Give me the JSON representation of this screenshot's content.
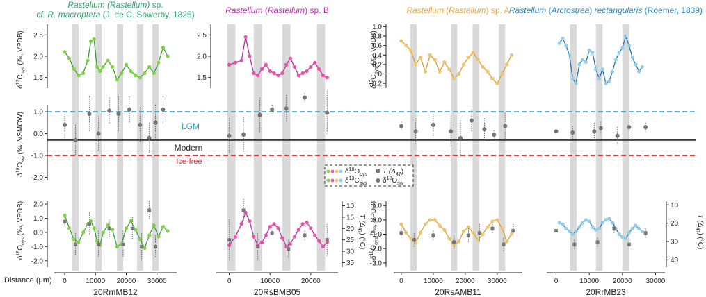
{
  "figure": {
    "ylabels": {
      "d13c": [
        "δ",
        "13",
        "C",
        "oys",
        " (‰, VPDB)"
      ],
      "d18ow": [
        "δ",
        "18",
        "O",
        "sw",
        " (‰, VSMOW)"
      ],
      "d18oc": [
        "δ",
        "18",
        "O",
        "oys",
        " (‰, VPDB)"
      ],
      "temp": [
        "T (Δ",
        "47",
        ") (°C)"
      ]
    },
    "xlabel": "Distance (μm)",
    "reference_lines": {
      "lgm": {
        "label": "LGM",
        "value": 1.0,
        "color": "#2aa6d4"
      },
      "modern": {
        "label": "Modern",
        "value": -0.3,
        "color": "#222222"
      },
      "icefree": {
        "label": "Ice-free",
        "value": -1.0,
        "color": "#dd2222"
      }
    },
    "legend": {
      "d18o_oys": [
        "δ",
        "18",
        "O",
        "oys"
      ],
      "d13c_oys": [
        "δ",
        "13",
        "C",
        "oys"
      ],
      "t_d47": [
        "T (Δ",
        "47",
        ")"
      ],
      "d18o_sw": [
        "δ",
        "18",
        "O",
        "sw"
      ]
    },
    "colors": {
      "A": "#7ed43e",
      "B": "#ec4fa8",
      "C": "#f2c46a",
      "D": "#8ecfee",
      "A_line": "#3a9e3a",
      "B_line": "#b22faa",
      "C_line": "#d99a2e",
      "D_line": "#2a6fa8",
      "shade": "#d9d9d9",
      "marker": "#777777"
    }
  },
  "chart_data": [
    {
      "type": "scatter",
      "sample": "20RmMB12",
      "title_parts": [
        {
          "text": "Rastellum (Rastellum) ",
          "italic": true
        },
        {
          "text": "sp.",
          "italic": false
        }
      ],
      "title2_parts": [
        {
          "text": "cf. R. macroptera",
          "italic": true
        },
        {
          "text": " (J. de C. Sowerby, 1825)",
          "italic": false
        }
      ],
      "title_color": "#2aa66a",
      "xticks": [
        0,
        10000,
        20000,
        30000
      ],
      "xlim": [
        -2500,
        35500
      ],
      "d13c": {
        "ylim": [
          1.25,
          2.75
        ],
        "ticks": [
          1.5,
          2.0,
          2.5
        ],
        "tick_labels": [
          "1.5",
          "2.0",
          "2.5"
        ],
        "x": [
          0,
          1500,
          3000,
          4500,
          6000,
          7500,
          8500,
          9500,
          10500,
          11500,
          12500,
          14000,
          15500,
          17000,
          18500,
          20000,
          21500,
          23000,
          24500,
          26000,
          27500,
          29000,
          30500,
          32000,
          33500
        ],
        "y": [
          2.1,
          1.95,
          1.7,
          1.55,
          1.6,
          1.9,
          2.35,
          2.4,
          1.75,
          1.65,
          1.75,
          1.9,
          1.75,
          1.45,
          1.6,
          1.8,
          1.65,
          1.55,
          1.5,
          1.6,
          1.75,
          1.6,
          1.85,
          2.2,
          2.0
        ]
      },
      "d18ow": {
        "x": [
          0,
          3500,
          8000,
          11000,
          14500,
          17500,
          21000,
          24500,
          27500,
          29500,
          32000
        ],
        "y": [
          0.4,
          -0.3,
          0.9,
          0.0,
          1.05,
          0.9,
          1.1,
          0.4,
          -0.2,
          0.5,
          1.1
        ],
        "err": [
          0.6,
          0.7,
          0.8,
          0.8,
          0.6,
          0.8,
          0.6,
          0.8,
          0.7,
          0.8,
          0.6
        ]
      },
      "d18oc": {
        "ylim": [
          -2.45,
          2.2
        ],
        "ticks": [
          -2.0,
          -1.0,
          0.0,
          1.0,
          2.0
        ],
        "tick_labels": [
          "-2.0",
          "-1.0",
          "0.0",
          "1.0",
          "2.0"
        ],
        "x": [
          0,
          1500,
          3000,
          4500,
          6000,
          7500,
          8500,
          9500,
          10500,
          11500,
          12500,
          14000,
          15500,
          17000,
          18500,
          20000,
          21500,
          23000,
          24500,
          26000,
          27500,
          29000,
          30500,
          32000,
          33500
        ],
        "y": [
          1.2,
          0.3,
          -0.5,
          -0.7,
          0.0,
          0.6,
          0.8,
          0.3,
          -0.6,
          -0.9,
          0.0,
          0.5,
          0.2,
          -1.0,
          -0.8,
          0.3,
          0.8,
          0.2,
          -0.5,
          -1.1,
          -0.2,
          0.5,
          -0.3,
          0.4,
          0.1
        ]
      },
      "temp": {
        "x": [
          0,
          3500,
          8000,
          11000,
          14500,
          19000,
          22000,
          25000,
          27500,
          29500
        ],
        "y": [
          17,
          27,
          18,
          27,
          20,
          27,
          20,
          28,
          12,
          28
        ],
        "err": [
          2,
          5,
          5,
          6,
          4,
          6,
          5,
          6,
          4,
          5
        ]
      },
      "bands": [
        [
          2500,
          4500
        ],
        [
          10000,
          12000
        ],
        [
          17000,
          19000
        ],
        [
          23500,
          25500
        ],
        [
          28500,
          30500
        ]
      ]
    },
    {
      "type": "scatter",
      "sample": "20RsBMB05",
      "title_parts": [
        {
          "text": "Rastellum ",
          "italic": true
        },
        {
          "text": "(",
          "italic": false
        },
        {
          "text": "Rastellum",
          "italic": true
        },
        {
          "text": ") sp. B",
          "italic": false
        }
      ],
      "title_color": "#c02ab2",
      "xticks": [
        0,
        10000,
        20000
      ],
      "xlim": [
        -2500,
        26000
      ],
      "d13c": {
        "ylim": [
          1.25,
          2.75
        ],
        "ticks": [
          1.5,
          2.0,
          2.5
        ],
        "tick_labels": [
          "1.5",
          "2.0",
          "2.5"
        ],
        "x": [
          0,
          1500,
          3000,
          4000,
          5000,
          6000,
          7000,
          8000,
          9000,
          10000,
          11000,
          12000,
          13000,
          14000,
          15000,
          16000,
          17000,
          18000,
          19000,
          20000,
          21000,
          22000,
          23000,
          24000
        ],
        "y": [
          1.8,
          1.85,
          1.9,
          2.45,
          2.0,
          1.6,
          1.55,
          1.7,
          1.8,
          1.65,
          1.6,
          1.55,
          1.6,
          1.8,
          1.95,
          1.75,
          1.55,
          1.6,
          1.65,
          1.75,
          1.85,
          1.7,
          1.55,
          1.5
        ]
      },
      "d18ow": {
        "x": [
          0,
          3500,
          7500,
          10500,
          14000,
          18500,
          24000
        ],
        "y": [
          -0.1,
          -0.05,
          0.85,
          1.1,
          1.15,
          1.65,
          0.95
        ],
        "err": [
          0.8,
          0.8,
          0.8,
          0.2,
          0.6,
          0.2,
          1.0
        ]
      },
      "d18oc": {
        "ylim": [
          -2.45,
          2.2
        ],
        "ticks": [
          -2.0,
          -1.0,
          0.0,
          1.0,
          2.0
        ],
        "tick_labels": [
          "-2.0",
          "-1.0",
          "0.0",
          "1.0",
          "2.0"
        ],
        "x": [
          0,
          1500,
          3000,
          4000,
          5000,
          6000,
          7000,
          8000,
          9000,
          10000,
          11000,
          12000,
          13000,
          14000,
          15000,
          16000,
          17000,
          18000,
          19000,
          20000,
          21000,
          22000,
          23000,
          24000
        ],
        "y": [
          -0.9,
          -0.3,
          0.6,
          1.4,
          0.8,
          -0.3,
          -0.9,
          -0.7,
          -0.2,
          0.4,
          0.6,
          0.3,
          -0.4,
          -1.0,
          -0.8,
          -0.3,
          0.2,
          0.6,
          0.7,
          0.3,
          -0.2,
          -0.6,
          -1.0,
          -0.7
        ]
      },
      "temp": {
        "x": [
          0,
          3500,
          7000,
          10500,
          14500,
          18500,
          24000
        ],
        "y": [
          25,
          12,
          28,
          22,
          29,
          23,
          25
        ],
        "err": [
          9,
          5,
          6,
          1,
          4,
          2,
          7
        ]
      },
      "bands": [
        [
          -500,
          1500
        ],
        [
          6000,
          8000
        ],
        [
          13000,
          15000
        ],
        [
          21500,
          23500
        ]
      ]
    },
    {
      "type": "scatter",
      "sample": "20RsAMB11",
      "title_parts": [
        {
          "text": "Rastellum ",
          "italic": true
        },
        {
          "text": "(",
          "italic": false
        },
        {
          "text": "Rastellum",
          "italic": true
        },
        {
          "text": ") sp. A",
          "italic": false
        }
      ],
      "title_color": "#e8a33a",
      "xticks": [
        0,
        10000,
        20000,
        30000
      ],
      "xlim": [
        -1500,
        37000
      ],
      "d13c": {
        "ylim": [
          -0.3,
          1.05
        ],
        "ticks": [
          -0.2,
          0.0,
          0.2,
          0.4,
          0.6,
          0.8,
          1.0
        ],
        "tick_labels": [
          "-0.2",
          "0",
          "0.2",
          "0.4",
          "0.6",
          "0.8",
          "1.0"
        ],
        "x": [
          0,
          1500,
          3000,
          4500,
          6000,
          7500,
          9000,
          10500,
          12000,
          13500,
          15000,
          16500,
          18000,
          19500,
          21000,
          22500,
          24000,
          25500,
          27000,
          28500,
          30000,
          31500,
          33000,
          34500
        ],
        "y": [
          0.7,
          0.6,
          0.5,
          0.2,
          0.35,
          0.05,
          0.4,
          0.3,
          0.05,
          0.25,
          0.1,
          -0.1,
          0.0,
          0.2,
          0.35,
          0.45,
          0.3,
          0.15,
          0.05,
          -0.1,
          -0.2,
          0.0,
          0.2,
          0.4
        ]
      },
      "d18ow": {
        "x": [
          0,
          4500,
          10000,
          15500,
          18500,
          22000,
          26000,
          29000,
          32500
        ],
        "y": [
          0.35,
          0.1,
          0.4,
          0.1,
          -0.2,
          0.6,
          0.2,
          -0.05,
          0.35
        ],
        "err": [
          0.2,
          0.6,
          0.5,
          0.7,
          0.8,
          0.5,
          0.5,
          0.2,
          0.6
        ]
      },
      "d18oc": {
        "ylim": [
          -3.3,
          1.3
        ],
        "ticks": [
          -3.0,
          -2.0,
          -1.0,
          0.0,
          1.0
        ],
        "tick_labels": [
          "-3.0",
          "-2.0",
          "-1.0",
          "0.0",
          "1.0"
        ],
        "x": [
          0,
          1500,
          3000,
          4500,
          6000,
          7500,
          9000,
          10500,
          12000,
          13500,
          15000,
          16500,
          18000,
          19500,
          21000,
          22500,
          24000,
          25500,
          27000,
          28500,
          30000,
          31500,
          33000,
          34500
        ],
        "y": [
          -0.3,
          -0.9,
          -1.3,
          -1.6,
          -0.9,
          -0.3,
          0.0,
          0.0,
          -0.4,
          -0.7,
          -1.3,
          -1.8,
          -1.5,
          -0.8,
          -0.5,
          -0.9,
          -1.4,
          -1.0,
          -0.5,
          -0.1,
          0.0,
          -0.6,
          -1.5,
          -1.0
        ]
      },
      "temp": {
        "x": [
          0,
          4000,
          10000,
          16500,
          21000,
          24500,
          28500,
          32000,
          35000
        ],
        "y": [
          22,
          25,
          23,
          26,
          23,
          22,
          20,
          27,
          21
        ],
        "err": [
          2,
          3,
          2,
          3,
          3,
          4,
          2,
          3,
          3
        ]
      },
      "bands": [
        [
          2800,
          4800
        ],
        [
          15500,
          17500
        ],
        [
          22300,
          24300
        ],
        [
          30500,
          32500
        ]
      ]
    },
    {
      "type": "scatter",
      "sample": "20RrMB23",
      "title_parts": [
        {
          "text": "Rastellum ",
          "italic": true
        },
        {
          "text": "(",
          "italic": false
        },
        {
          "text": "Arctostrea",
          "italic": true
        },
        {
          "text": ") ",
          "italic": false
        },
        {
          "text": "rectangularis",
          "italic": true
        },
        {
          "text": " (Roemer, 1839)",
          "italic": false
        }
      ],
      "title_color": "#2a8ac0",
      "xticks": [
        0,
        10000,
        20000,
        30000
      ],
      "xlim": [
        -2000,
        32000
      ],
      "d13c": {
        "ylim": [
          -0.3,
          1.05
        ],
        "ticks": [
          -0.2,
          0.0,
          0.2,
          0.4,
          0.6,
          0.8,
          1.0
        ],
        "tick_labels": [
          "-0.2",
          "0",
          "0.2",
          "0.4",
          "0.6",
          "0.8",
          "1.0"
        ],
        "x": [
          1000,
          2000,
          3000,
          4000,
          5000,
          6000,
          7000,
          8000,
          9000,
          10000,
          11000,
          12000,
          13000,
          14000,
          15000,
          16000,
          17000,
          18000,
          19000,
          20000,
          21000,
          22000,
          23000,
          24000,
          25000,
          26000
        ],
        "y": [
          0.65,
          0.75,
          0.6,
          0.4,
          -0.1,
          -0.2,
          0.2,
          0.3,
          0.25,
          0.5,
          0.45,
          0.1,
          -0.1,
          0.1,
          -0.2,
          -0.15,
          0.05,
          0.3,
          0.45,
          0.55,
          0.8,
          0.6,
          0.35,
          0.2,
          0.05,
          0.15
        ]
      },
      "d18ow": {
        "x": [
          0,
          5000,
          11500,
          13500,
          18500,
          22000,
          27000
        ],
        "y": [
          0.1,
          0.05,
          0.1,
          0.25,
          -0.1,
          0.3,
          0.3
        ],
        "err": [
          0.1,
          0.3,
          0.4,
          0.3,
          0.4,
          0.6,
          0.2
        ]
      },
      "d18oc": {
        "ylim": [
          -3.3,
          1.3
        ],
        "ticks": [
          -3.0,
          -2.0,
          -1.0,
          0.0,
          1.0
        ],
        "tick_labels": [
          "-3.0",
          "-2.0",
          "-1.0",
          "0.0",
          "1.0"
        ],
        "x": [
          1000,
          2000,
          3000,
          4000,
          5000,
          6000,
          7000,
          8000,
          9000,
          10000,
          11000,
          12000,
          13000,
          14000,
          15000,
          16000,
          17000,
          18000,
          19000,
          20000,
          21000,
          22000,
          23000,
          24000,
          25000,
          26000
        ],
        "y": [
          -0.2,
          -0.3,
          -0.6,
          -0.8,
          -1.0,
          -0.8,
          -0.5,
          -0.2,
          0.0,
          -0.1,
          -0.5,
          -0.7,
          -0.6,
          -0.2,
          0.0,
          0.1,
          -0.2,
          -0.6,
          -1.0,
          -1.2,
          -1.3,
          -0.9,
          -0.6,
          -0.4,
          -0.6,
          -0.8
        ]
      },
      "temp": {
        "x": [
          0,
          5500,
          12500,
          17500,
          22000,
          27000
        ],
        "y": [
          21,
          27,
          26,
          20,
          27,
          22
        ],
        "err": [
          1,
          2,
          2,
          2,
          2,
          2
        ]
      },
      "bands": [
        [
          4200,
          6200
        ],
        [
          12000,
          14000
        ],
        [
          20000,
          22000
        ]
      ]
    }
  ]
}
